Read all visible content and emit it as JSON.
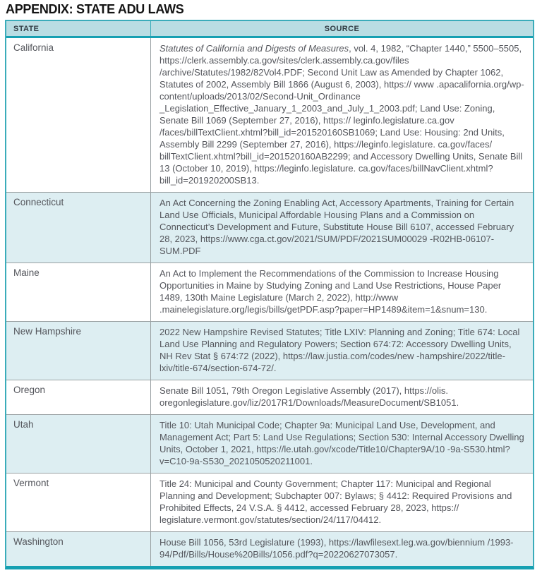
{
  "title": "APPENDIX: STATE ADU LAWS",
  "colors": {
    "accent_teal": "#16a0b2",
    "border_teal": "#3aacba",
    "header_bg": "#b9dde3",
    "row_alt_bg": "#ddeef2",
    "body_text": "#54565c"
  },
  "table": {
    "headers": {
      "state": "STATE",
      "source": "SOURCE"
    },
    "rows": [
      {
        "state": "California",
        "source_italic": "Statutes of California and Digests of Measures",
        "source": ", vol. 4, 1982, “Chapter 1440,” 5500–5505, https://clerk.assembly.ca.gov/sites/clerk.assembly.ca.gov/files /archive/Statutes/1982/82Vol4.PDF; Second Unit Law as Amended by Chapter 1062, Statutes of 2002, Assembly Bill 1866 (August 6, 2003), https:// www .apacalifornia.org/wp-content/uploads/2013/02/Second-Unit_Ordinance _Legislation_Effective_January_1_2003_and_July_1_2003.pdf; Land Use: Zoning, Senate Bill 1069 (September 27, 2016), https:// leginfo.legislature.ca.gov /faces/billTextClient.xhtml?bill_id=201520160SB1069; Land Use: Housing: 2nd Units, Assembly Bill 2299 (September 27, 2016), https://leginfo.legislature. ca.gov/faces/ billTextClient.xhtml?bill_id=201520160AB2299; and Accessory Dwelling Units, Senate Bill 13 (October 10, 2019), https://leginfo.legislature. ca.gov/faces/billNavClient.xhtml?bill_id=201920200SB13."
      },
      {
        "state": "Connecticut",
        "source_italic": "",
        "source": "An Act Concerning the Zoning Enabling Act, Accessory Apartments, Training for Certain Land Use Officials, Municipal Affordable Housing Plans and a Commission on Connecticut’s Development and Future, Substitute House Bill 6107, accessed February 28, 2023, https://www.cga.ct.gov/2021/SUM/PDF/2021SUM00029 -R02HB-06107-SUM.PDF"
      },
      {
        "state": "Maine",
        "source_italic": "",
        "source": "An Act to Implement the Recommendations of the Commission to Increase Housing Opportunities in Maine by Studying Zoning and Land Use Restrictions, House Paper 1489, 130th Maine Legislature (March 2, 2022), http://www .mainelegislature.org/legis/bills/getPDF.asp?paper=HP1489&item=1&snum=130."
      },
      {
        "state": "New Hampshire",
        "source_italic": "",
        "source": "2022 New Hampshire Revised Statutes; Title LXIV: Planning and Zoning; Title 674: Local Land Use Planning and Regulatory Powers; Section 674:72: Accessory Dwelling Units, NH Rev Stat § 674:72 (2022), https://law.justia.com/codes/new -hampshire/2022/title-lxiv/title-674/section-674-72/."
      },
      {
        "state": "Oregon",
        "source_italic": "",
        "source": "Senate Bill 1051, 79th Oregon Legislative Assembly (2017), https://olis. oregonlegislature.gov/liz/2017R1/Downloads/MeasureDocument/SB1051."
      },
      {
        "state": "Utah",
        "source_italic": "",
        "source": "Title 10: Utah Municipal Code; Chapter 9a: Municipal Land Use, Development, and Management Act; Part 5: Land Use Regulations; Section 530: Internal Accessory Dwelling Units, October 1, 2021, https://le.utah.gov/xcode/Title10/Chapter9A/10 -9a-S530.html?v=C10-9a-S530_2021050520211001."
      },
      {
        "state": "Vermont",
        "source_italic": "",
        "source": "Title 24: Municipal and County Government; Chapter 117: Municipal and Regional Planning and Development; Subchapter 007: Bylaws; § 4412: Required Provisions and Prohibited Effects, 24 V.S.A. § 4412, accessed February 28, 2023, https:// legislature.vermont.gov/statutes/section/24/117/04412."
      },
      {
        "state": "Washington",
        "source_italic": "",
        "source": "House Bill 1056, 53rd Legislature (1993), https://lawfilesext.leg.wa.gov/biennium /1993-94/Pdf/Bills/House%20Bills/1056.pdf?q=20220627073057."
      }
    ]
  }
}
